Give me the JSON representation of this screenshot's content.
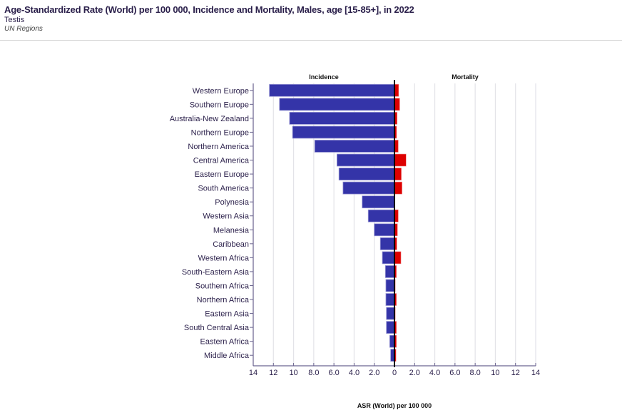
{
  "header": {
    "title": "Age-Standardized Rate (World) per 100 000, Incidence and Mortality, Males, age [15-85+], in 2022",
    "subtitle": "Testis",
    "region": "UN Regions"
  },
  "colors": {
    "incidence": "#3434a8",
    "mortality": "#dd0000",
    "zero_line": "#000000",
    "grid": "#e3e3e8",
    "axis": "#6b6490"
  },
  "chart_data": {
    "type": "bar",
    "orientation": "horizontal-butterfly",
    "title": "Age-Standardized Rate (World) per 100 000, Incidence and Mortality, Males, age [15-85+], in 2022",
    "xlabel": "ASR (World) per 100 000",
    "ylabel": "",
    "panel_labels": [
      "Incidence",
      "Mortality"
    ],
    "xlim": [
      -14,
      14
    ],
    "x_ticks": [
      -14,
      -12,
      -10,
      -8,
      -6,
      -4,
      -2,
      0,
      2,
      4,
      6,
      8,
      10,
      12,
      14
    ],
    "x_tick_labels": [
      "14",
      "12",
      "10",
      "8.0",
      "6.0",
      "4.0",
      "2.0",
      "0",
      "2.0",
      "4.0",
      "6.0",
      "8.0",
      "10",
      "12",
      "14"
    ],
    "grid": true,
    "categories": [
      "Western Europe",
      "Southern Europe",
      "Australia-New Zealand",
      "Northern Europe",
      "Northern America",
      "Central America",
      "Eastern Europe",
      "South America",
      "Polynesia",
      "Western Asia",
      "Melanesia",
      "Caribbean",
      "Western Africa",
      "South-Eastern Asia",
      "Southern Africa",
      "Northern Africa",
      "Eastern Asia",
      "South Central Asia",
      "Eastern Africa",
      "Middle Africa"
    ],
    "series": [
      {
        "name": "Incidence",
        "values": [
          12.4,
          11.4,
          10.4,
          10.1,
          7.9,
          5.7,
          5.5,
          5.1,
          3.2,
          2.6,
          2.0,
          1.4,
          1.2,
          0.9,
          0.85,
          0.85,
          0.8,
          0.8,
          0.47,
          0.38
        ]
      },
      {
        "name": "Mortality",
        "values": [
          0.42,
          0.52,
          0.26,
          0.21,
          0.38,
          1.15,
          0.68,
          0.75,
          0.0,
          0.38,
          0.3,
          0.23,
          0.64,
          0.19,
          0.08,
          0.19,
          0.08,
          0.19,
          0.19,
          0.15
        ]
      }
    ]
  }
}
